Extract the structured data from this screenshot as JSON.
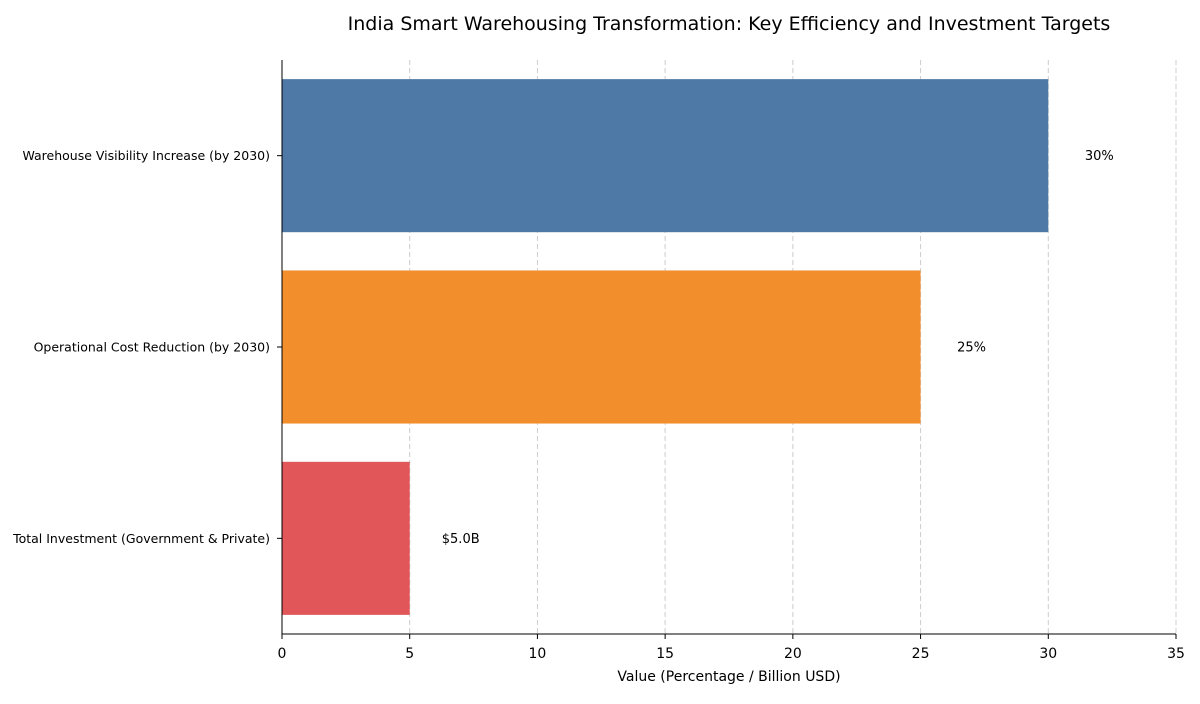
{
  "chart_data": {
    "type": "bar",
    "orientation": "horizontal",
    "title": "India Smart Warehousing Transformation: Key Efficiency and Investment Targets",
    "xlabel": "Value (Percentage / Billion USD)",
    "ylabel": "",
    "xlim": [
      0,
      35
    ],
    "xticks": [
      0,
      5,
      10,
      15,
      20,
      25,
      30,
      35
    ],
    "grid": "x-dashed",
    "categories": [
      "Warehouse Visibility Increase (by 2030)",
      "Operational Cost Reduction (by 2030)",
      "Total Investment (Government & Private)"
    ],
    "values": [
      30,
      25,
      5
    ],
    "value_labels": [
      "30%",
      "25%",
      "$5.0B"
    ],
    "colors": [
      "#4e79a7",
      "#f28e2b",
      "#e15759"
    ]
  }
}
